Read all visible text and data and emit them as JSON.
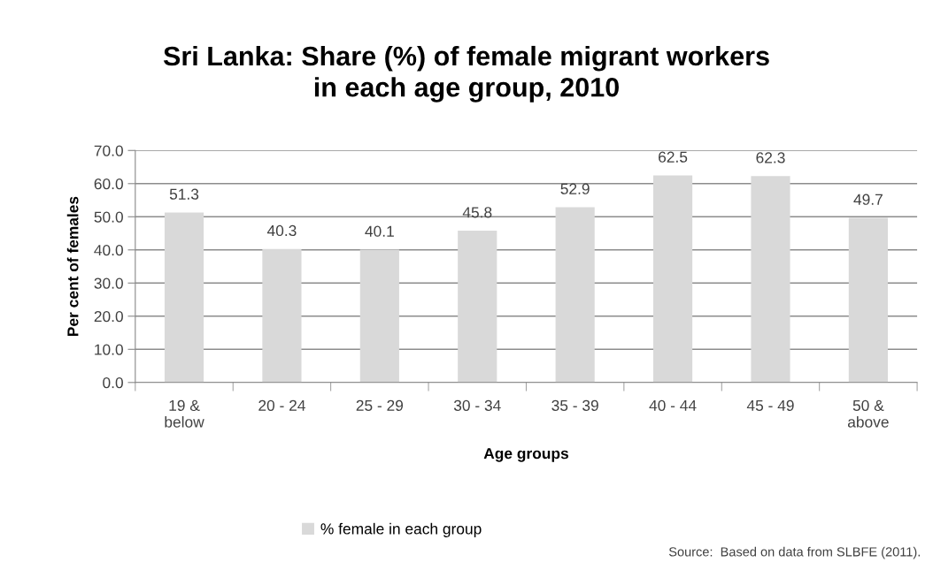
{
  "chart_data": {
    "type": "bar",
    "title": "Sri Lanka: Share (%) of female migrant workers\nin each age group, 2010",
    "xlabel": "Age groups",
    "ylabel": "Per cent of females",
    "categories": [
      "19 &\nbelow",
      "20 - 24",
      "25 - 29",
      "30 - 34",
      "35 - 39",
      "40 - 44",
      "45 - 49",
      "50 &\nabove"
    ],
    "series": [
      {
        "name": "% female in each group",
        "color": "#d9d9d9",
        "values": [
          51.3,
          40.3,
          40.1,
          45.8,
          52.9,
          62.5,
          62.3,
          49.7
        ]
      }
    ],
    "ylim": [
      0,
      70
    ],
    "yticks": [
      {
        "value": 0,
        "label": "0.0"
      },
      {
        "value": 10,
        "label": "10.0"
      },
      {
        "value": 20,
        "label": "20.0"
      },
      {
        "value": 30,
        "label": "30.0"
      },
      {
        "value": 40,
        "label": "40.0"
      },
      {
        "value": 50,
        "label": "50.0"
      },
      {
        "value": 60,
        "label": "60.0"
      },
      {
        "value": 70,
        "label": "70.0"
      }
    ],
    "data_labels": true,
    "grid": "y",
    "legend": "bottom",
    "annotations": [
      "Source:  Based on data from SLBFE (2011)."
    ]
  }
}
